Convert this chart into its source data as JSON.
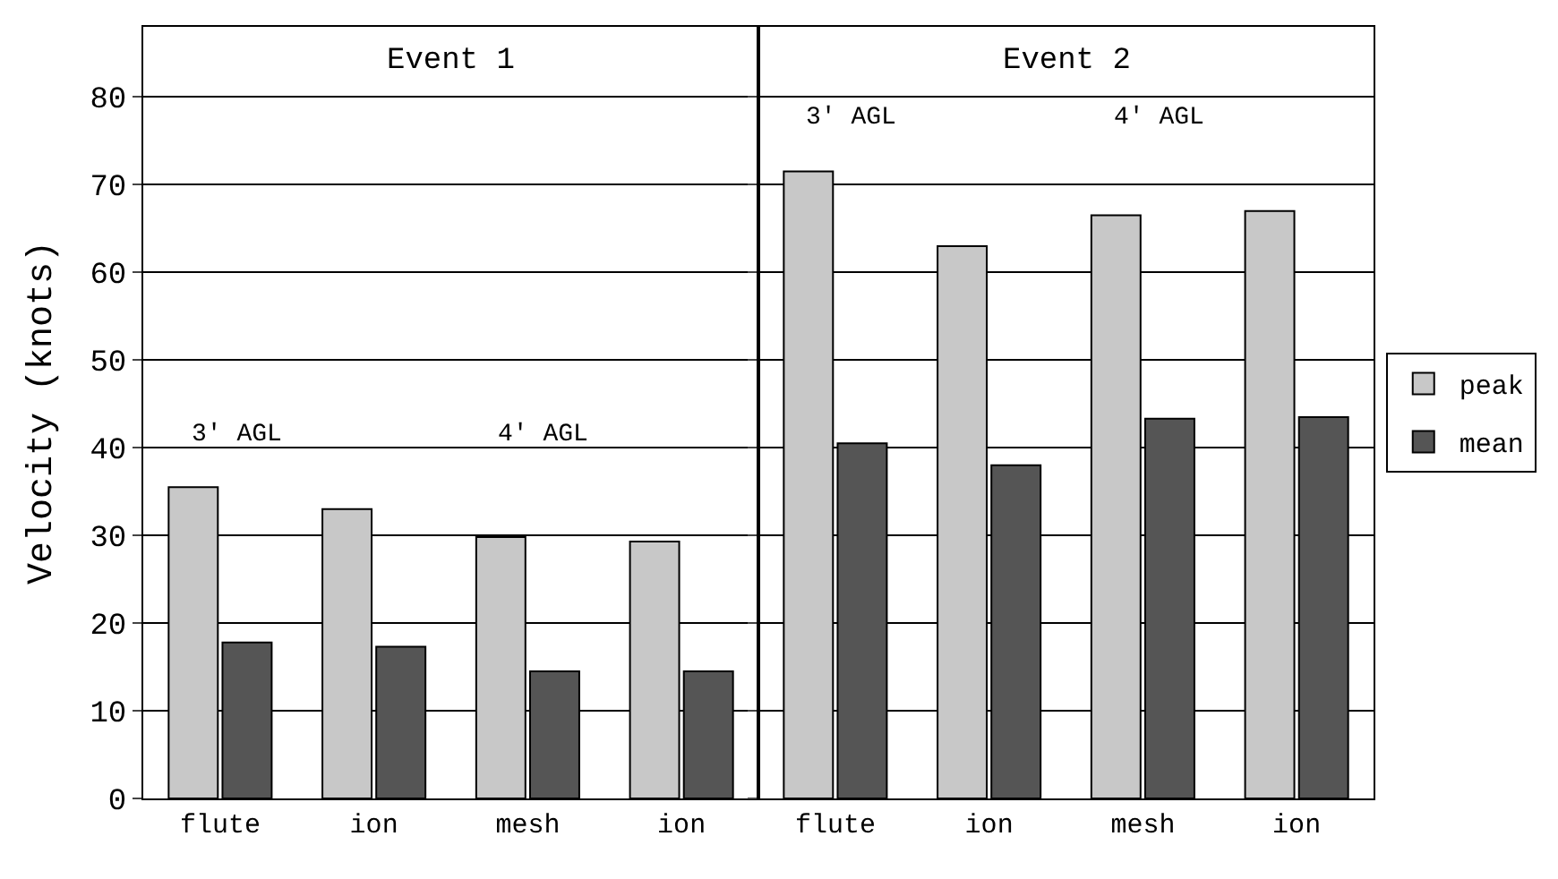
{
  "chart_data": [
    {
      "type": "bar",
      "title": "Event 1",
      "categories": [
        "flute",
        "ion",
        "mesh",
        "ion"
      ],
      "ylabel": "Velocity (knots)",
      "ylim": [
        0,
        88
      ],
      "yticks": [
        0,
        10,
        20,
        30,
        40,
        50,
        60,
        70,
        80
      ],
      "grid": "y",
      "legend": "right",
      "series": [
        {
          "name": "peak",
          "color": "#c8c8c8",
          "values": [
            35.5,
            33,
            29.8,
            29.3
          ]
        },
        {
          "name": "mean",
          "color": "#555555",
          "values": [
            17.8,
            17.3,
            14.5,
            14.5
          ]
        }
      ],
      "annotations": [
        "3' AGL",
        "4' AGL"
      ]
    },
    {
      "type": "bar",
      "title": "Event 2",
      "categories": [
        "flute",
        "ion",
        "mesh",
        "ion"
      ],
      "ylim": [
        0,
        88
      ],
      "tick_labels": "x",
      "grid": "y",
      "series": [
        {
          "color": "#c8c8c8",
          "values": [
            71.5,
            63,
            66.5,
            67
          ]
        },
        {
          "color": "#555555",
          "values": [
            40.5,
            38,
            43.3,
            43.5
          ]
        }
      ],
      "annotations": [
        "3' AGL",
        "4' AGL"
      ]
    }
  ]
}
